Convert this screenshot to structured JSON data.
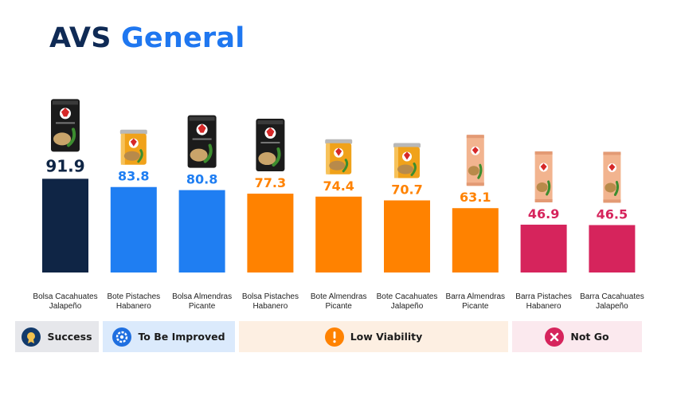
{
  "title": {
    "part1": "AVS",
    "part2": "General"
  },
  "chart_data": {
    "type": "bar",
    "categories": [
      [
        "Bolsa Cacahuates",
        "Jalapeño"
      ],
      [
        "Bote Pistaches",
        "Habanero"
      ],
      [
        "Bolsa Almendras",
        "Picante"
      ],
      [
        "Bolsa Pistaches",
        "Habanero"
      ],
      [
        "Bote Almendras",
        "Picante"
      ],
      [
        "Bote Cacahuates",
        "Jalapeño"
      ],
      [
        "Barra Almendras",
        "Picante"
      ],
      [
        "Barra Pistaches",
        "Habanero"
      ],
      [
        "Barra Cacahuates",
        "Jalapeño"
      ]
    ],
    "values": [
      91.9,
      83.8,
      80.8,
      77.3,
      74.4,
      70.7,
      63.1,
      46.9,
      46.5
    ],
    "value_labels": [
      "91.9",
      "83.8",
      "80.8",
      "77.3",
      "74.4",
      "70.7",
      "63.1",
      "46.9",
      "46.5"
    ],
    "packages": [
      "bag",
      "can",
      "bag",
      "bag",
      "can",
      "can",
      "bar",
      "bar",
      "bar"
    ],
    "bar_colors": [
      "#0f2545",
      "#1f7ef2",
      "#1f7ef2",
      "#ff8200",
      "#ff8200",
      "#ff8200",
      "#ff8200",
      "#d6245c",
      "#d6245c"
    ],
    "label_colors": [
      "#0f2545",
      "#1f7ef2",
      "#1f7ef2",
      "#ff8200",
      "#ff8200",
      "#ff8200",
      "#ff8200",
      "#d6245c",
      "#d6245c"
    ],
    "ylim": [
      0,
      100
    ],
    "grid": false
  },
  "legend": [
    {
      "label": "Success",
      "icon": "medal-icon",
      "bg": "#e6e7eb",
      "icon_color": "#123a6b"
    },
    {
      "label": "To Be Improved",
      "icon": "gear-icon",
      "bg": "#dbeafc",
      "icon_color": "#1f6fe0"
    },
    {
      "label": "Low Viability",
      "icon": "exclamation-icon",
      "bg": "#fdefe2",
      "icon_color": "#ff8200"
    },
    {
      "label": "Not Go",
      "icon": "close-icon",
      "bg": "#fbe9ee",
      "icon_color": "#d6245c"
    }
  ]
}
